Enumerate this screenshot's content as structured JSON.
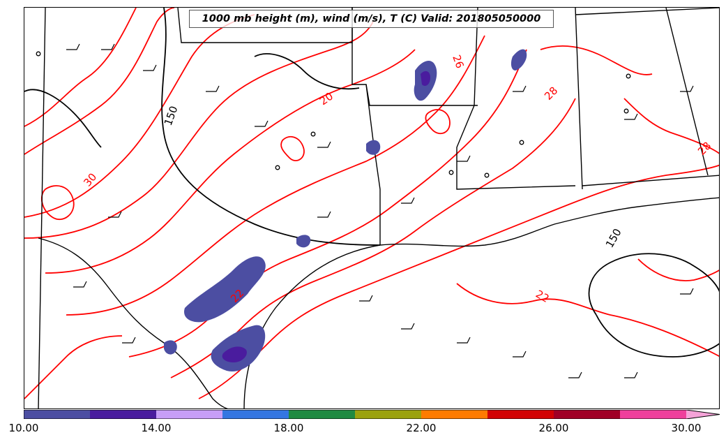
{
  "title": "1000 mb height (m), wind (m/s), T (C) Valid: 201805050000",
  "contour_labels": {
    "height": [
      "150",
      "150"
    ],
    "temperature": [
      "20",
      "26",
      "28",
      "28",
      "30",
      "22",
      "22"
    ]
  },
  "colorbar": {
    "colors": [
      "#4c4ea2",
      "#4a1c9e",
      "#c79ef7",
      "#3476e1",
      "#1f8a42",
      "#9ba20e",
      "#fe7b00",
      "#d20204",
      "#a00026",
      "#ef3f9c",
      "#f5a3d8"
    ],
    "tick_labels": [
      "10.00",
      "14.00",
      "18.00",
      "22.00",
      "26.00",
      "30.00"
    ],
    "range": [
      10,
      31
    ],
    "extend": "max"
  },
  "colors": {
    "temperature_contour": "#ff0000",
    "height_contour": "#000000",
    "wind_barb": "#000000",
    "state_border": "#000000"
  }
}
